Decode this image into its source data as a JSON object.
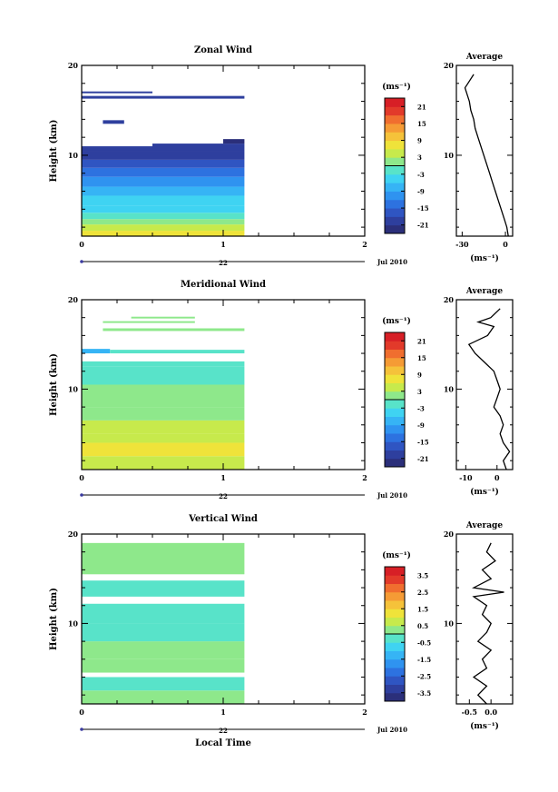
{
  "chart_data": [
    {
      "type": "heatmap",
      "title": "Zonal Wind",
      "xlabel": "",
      "ylabel": "Height (km)",
      "xlim": [
        0,
        2
      ],
      "ylim": [
        1,
        20
      ],
      "x_ticks": [
        "0",
        "1",
        "2"
      ],
      "y_ticks": [
        "10",
        "20"
      ],
      "date_axis": {
        "day": "22",
        "month_label": "Jul 2010"
      },
      "colorbar": {
        "unit": "(ms⁻¹)",
        "ticks": [
          "21",
          "15",
          "9",
          "3",
          "-3",
          "-9",
          "-15",
          "-21"
        ],
        "range": [
          -24,
          24
        ]
      },
      "cells": [
        {
          "x0": 0.0,
          "x1": 1.15,
          "y0": 1.0,
          "y1": 1.6,
          "v": 6
        },
        {
          "x0": 0.0,
          "x1": 1.15,
          "y0": 1.6,
          "y1": 2.3,
          "v": 3
        },
        {
          "x0": 0.0,
          "x1": 1.15,
          "y0": 2.3,
          "y1": 2.9,
          "v": 0
        },
        {
          "x0": 0.0,
          "x1": 1.15,
          "y0": 2.9,
          "y1": 3.6,
          "v": -2
        },
        {
          "x0": 0.0,
          "x1": 1.15,
          "y0": 3.6,
          "y1": 4.4,
          "v": -4
        },
        {
          "x0": 0.0,
          "x1": 1.15,
          "y0": 4.4,
          "y1": 5.5,
          "v": -6
        },
        {
          "x0": 0.0,
          "x1": 1.15,
          "y0": 5.5,
          "y1": 6.5,
          "v": -8
        },
        {
          "x0": 0.0,
          "x1": 1.15,
          "y0": 6.5,
          "y1": 7.6,
          "v": -10
        },
        {
          "x0": 0.0,
          "x1": 1.15,
          "y0": 7.6,
          "y1": 8.6,
          "v": -13
        },
        {
          "x0": 0.0,
          "x1": 1.15,
          "y0": 8.6,
          "y1": 9.5,
          "v": -16
        },
        {
          "x0": 0.0,
          "x1": 1.15,
          "y0": 9.5,
          "y1": 10.4,
          "v": -19
        },
        {
          "x0": 0.0,
          "x1": 0.5,
          "y0": 10.4,
          "y1": 11.0,
          "v": -21
        },
        {
          "x0": 0.5,
          "x1": 1.15,
          "y0": 10.4,
          "y1": 11.3,
          "v": -21
        },
        {
          "x0": 1.0,
          "x1": 1.15,
          "y0": 11.3,
          "y1": 11.8,
          "v": -22
        },
        {
          "x0": 0.15,
          "x1": 0.3,
          "y0": 13.5,
          "y1": 13.9,
          "v": -21
        },
        {
          "x0": 0.0,
          "x1": 1.15,
          "y0": 16.3,
          "y1": 16.6,
          "v": -21
        },
        {
          "x0": 0.0,
          "x1": 0.5,
          "y0": 16.9,
          "y1": 17.1,
          "v": -21
        }
      ]
    },
    {
      "type": "line",
      "title": "Average",
      "xlabel": "(ms⁻¹)",
      "ylabel": "",
      "xlim": [
        -34,
        5
      ],
      "ylim": [
        1,
        20
      ],
      "x_ticks": [
        "-30",
        "0"
      ],
      "y_ticks": [
        "10",
        "20"
      ],
      "x": [
        2,
        1,
        -1,
        -3,
        -5,
        -7,
        -9,
        -11,
        -13,
        -15,
        -17,
        -19,
        -21,
        -22,
        -24,
        -25,
        -27,
        -28,
        -26,
        -22
      ],
      "y": [
        1,
        2,
        3,
        4,
        5,
        6,
        7,
        8,
        9,
        10,
        11,
        12,
        13,
        14,
        15,
        16,
        17,
        17.5,
        18,
        19
      ]
    },
    {
      "type": "heatmap",
      "title": "Meridional Wind",
      "xlabel": "",
      "ylabel": "Height (km)",
      "xlim": [
        0,
        2
      ],
      "ylim": [
        1,
        20
      ],
      "x_ticks": [
        "0",
        "1",
        "2"
      ],
      "y_ticks": [
        "10",
        "20"
      ],
      "date_axis": {
        "day": "22",
        "month_label": "Jul 2010"
      },
      "colorbar": {
        "unit": "(ms⁻¹)",
        "ticks": [
          "21",
          "15",
          "9",
          "3",
          "-3",
          "-9",
          "-15",
          "-21"
        ],
        "range": [
          -24,
          24
        ]
      },
      "cells": [
        {
          "x0": 0.0,
          "x1": 1.15,
          "y0": 1.0,
          "y1": 2.5,
          "v": 5
        },
        {
          "x0": 0.0,
          "x1": 1.15,
          "y0": 2.5,
          "y1": 4.0,
          "v": 6
        },
        {
          "x0": 0.0,
          "x1": 1.15,
          "y0": 4.0,
          "y1": 5.0,
          "v": 4
        },
        {
          "x0": 0.0,
          "x1": 1.15,
          "y0": 5.0,
          "y1": 6.5,
          "v": 3
        },
        {
          "x0": 0.0,
          "x1": 1.15,
          "y0": 6.5,
          "y1": 8.0,
          "v": 1
        },
        {
          "x0": 0.0,
          "x1": 1.15,
          "y0": 8.0,
          "y1": 10.5,
          "v": 0
        },
        {
          "x0": 0.0,
          "x1": 1.15,
          "y0": 10.5,
          "y1": 12.5,
          "v": -1
        },
        {
          "x0": 0.0,
          "x1": 1.15,
          "y0": 12.5,
          "y1": 13.1,
          "v": -2
        },
        {
          "x0": 0.0,
          "x1": 0.2,
          "y0": 14.0,
          "y1": 14.5,
          "v": -8
        },
        {
          "x0": 0.2,
          "x1": 1.15,
          "y0": 14.0,
          "y1": 14.4,
          "v": -2
        },
        {
          "x0": 0.15,
          "x1": 1.15,
          "y0": 16.5,
          "y1": 16.8,
          "v": 0
        },
        {
          "x0": 0.15,
          "x1": 0.8,
          "y0": 17.4,
          "y1": 17.6,
          "v": 2
        },
        {
          "x0": 0.35,
          "x1": 0.8,
          "y0": 17.9,
          "y1": 18.1,
          "v": 0
        }
      ]
    },
    {
      "type": "line",
      "title": "Average",
      "xlabel": "(ms⁻¹)",
      "ylabel": "",
      "xlim": [
        -13,
        5
      ],
      "ylim": [
        1,
        20
      ],
      "x_ticks": [
        "-10",
        "0"
      ],
      "y_ticks": [
        "10",
        "20"
      ],
      "x": [
        3,
        2,
        4,
        2,
        1,
        2,
        1,
        -1,
        0,
        1,
        0,
        -1,
        -4,
        -7,
        -9,
        -3,
        -1,
        -6,
        -2,
        1
      ],
      "y": [
        1,
        2,
        3,
        4,
        5,
        6,
        7,
        8,
        9,
        10,
        11,
        12,
        13,
        14,
        15,
        16,
        17,
        17.5,
        18,
        19
      ]
    },
    {
      "type": "heatmap",
      "title": "Vertical Wind",
      "xlabel": "Local Time",
      "ylabel": "Height (km)",
      "xlim": [
        0,
        2
      ],
      "ylim": [
        1,
        20
      ],
      "x_ticks": [
        "0",
        "1",
        "2"
      ],
      "y_ticks": [
        "10",
        "20"
      ],
      "date_axis": {
        "day": "22",
        "month_label": "Jul 2010"
      },
      "colorbar": {
        "unit": "(ms⁻¹)",
        "ticks": [
          "3.5",
          "2.5",
          "1.5",
          "0.5",
          "-0.5",
          "-1.5",
          "-2.5",
          "-3.5"
        ],
        "range": [
          -4,
          4
        ]
      },
      "cells": [
        {
          "x0": 0.0,
          "x1": 1.15,
          "y0": 1.0,
          "y1": 2.5,
          "v": 0.3
        },
        {
          "x0": 0.0,
          "x1": 1.15,
          "y0": 2.5,
          "y1": 4.0,
          "v": -0.2
        },
        {
          "x0": 0.0,
          "x1": 1.15,
          "y0": 4.5,
          "y1": 6.0,
          "v": 0.1
        },
        {
          "x0": 0.0,
          "x1": 1.15,
          "y0": 6.0,
          "y1": 8.0,
          "v": 0.3
        },
        {
          "x0": 0.0,
          "x1": 1.15,
          "y0": 8.0,
          "y1": 10.0,
          "v": -0.1
        },
        {
          "x0": 0.0,
          "x1": 1.15,
          "y0": 10.0,
          "y1": 12.2,
          "v": -0.4
        },
        {
          "x0": 0.0,
          "x1": 1.15,
          "y0": 13.0,
          "y1": 14.8,
          "v": -0.3
        },
        {
          "x0": 0.0,
          "x1": 1.15,
          "y0": 15.5,
          "y1": 19.0,
          "v": 0.0
        }
      ]
    },
    {
      "type": "line",
      "title": "Average",
      "xlabel": "(ms⁻¹)",
      "ylabel": "",
      "xlim": [
        -0.8,
        0.5
      ],
      "ylim": [
        1,
        20
      ],
      "x_ticks": [
        "-0.5",
        "0.0"
      ],
      "y_ticks": [
        "10",
        "20"
      ],
      "x": [
        -0.1,
        -0.3,
        -0.1,
        -0.4,
        -0.1,
        -0.2,
        0.0,
        -0.3,
        -0.1,
        0.0,
        -0.2,
        -0.1,
        -0.4,
        0.3,
        -0.4,
        0.0,
        -0.2,
        0.1,
        -0.1,
        0.0
      ],
      "y": [
        1,
        2,
        3,
        4,
        5,
        6,
        7,
        8,
        9,
        10,
        11,
        12,
        13,
        13.5,
        14,
        15,
        16,
        17,
        18,
        19
      ]
    }
  ]
}
